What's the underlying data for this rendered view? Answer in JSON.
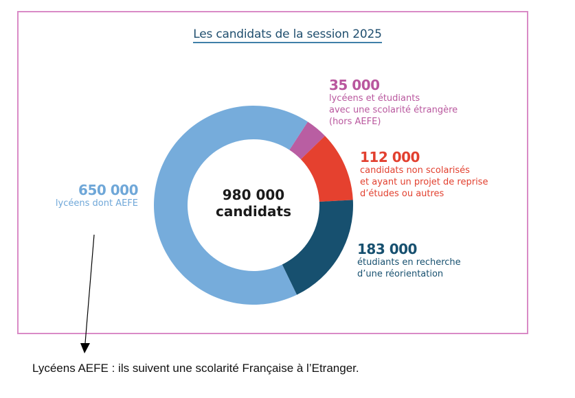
{
  "chart_data": {
    "type": "pie",
    "variant": "donut",
    "title": "Les candidats de la session 2025",
    "center_label": {
      "value": "980 000",
      "unit": "candidats"
    },
    "total": 980000,
    "start_angle_deg": 33,
    "direction": "clockwise",
    "slices": [
      {
        "key": "magenta",
        "value": 35000,
        "value_label": "35 000",
        "label": [
          "lycéens et étudiants",
          "avec une scolarité étrangère",
          "(hors AEFE)"
        ],
        "color": "#b95ea2"
      },
      {
        "key": "red",
        "value": 112000,
        "value_label": "112 000",
        "label": [
          "candidats non scolarisés",
          "et ayant un projet de reprise",
          "d’études ou autres"
        ],
        "color": "#e5412f"
      },
      {
        "key": "dark",
        "value": 183000,
        "value_label": "183 000",
        "label": [
          "étudiants en recherche",
          "d’une réorientation"
        ],
        "color": "#17506f"
      },
      {
        "key": "light",
        "value": 650000,
        "value_label": "650 000",
        "label": [
          "lycéens dont AEFE"
        ],
        "color": "#76acdb"
      }
    ],
    "legend": "none",
    "annotation": "Lycéens AEFE : ils suivent une scolarité Française à l’Etranger."
  },
  "colors": {
    "frame": "#d98ac6",
    "title": "#1f4e6e",
    "title_underline": "#3f7fa8"
  }
}
